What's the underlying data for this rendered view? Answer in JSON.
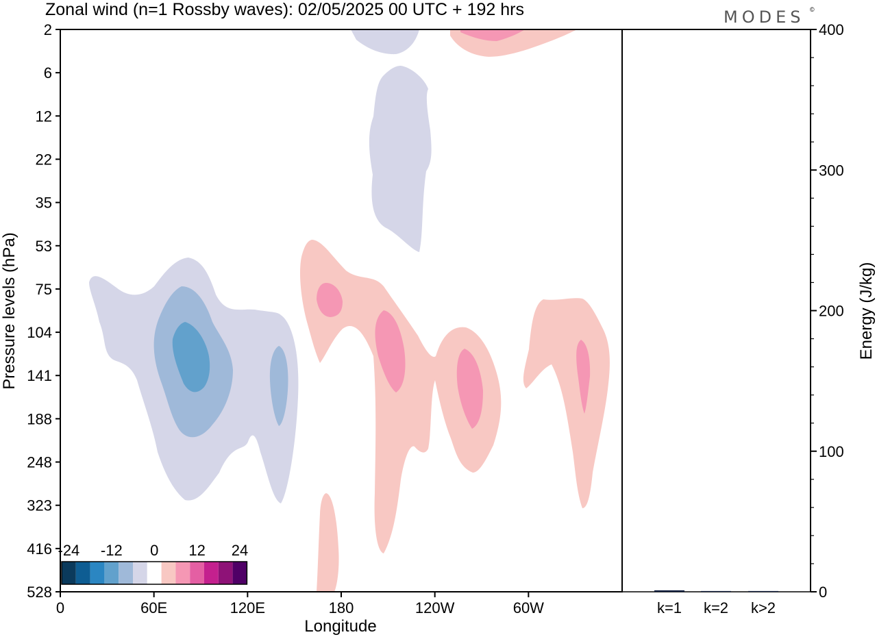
{
  "header": {
    "title": "Zonal wind (n=1 Rossby waves):  02/05/2025  00 UTC  + 192 hrs",
    "logo": "MODES",
    "logo_mark": "©"
  },
  "chart_data": [
    {
      "type": "heatmap",
      "title": "Zonal wind (n=1 Rossby waves):  02/05/2025  00 UTC  + 192 hrs",
      "xlabel": "Longitude",
      "ylabel": "Pressure levels (hPa)",
      "x_ticks": [
        "0",
        "60E",
        "120E",
        "180",
        "120W",
        "60W"
      ],
      "x_tick_values_deg_east": [
        0,
        60,
        120,
        180,
        240,
        300
      ],
      "xlim_deg_east": [
        0,
        360
      ],
      "y_ticks": [
        "2",
        "6",
        "12",
        "22",
        "35",
        "53",
        "75",
        "104",
        "141",
        "188",
        "248",
        "323",
        "416",
        "528"
      ],
      "y_scale": "model levels (index spaced)",
      "ylim": [
        "528",
        "2"
      ],
      "colorbar": {
        "tick_labels": [
          "-24",
          "-12",
          "0",
          "12",
          "24"
        ],
        "tick_values": [
          -24,
          -12,
          0,
          12,
          24
        ],
        "levels": [
          -24,
          -20,
          -16,
          -12,
          -8,
          -4,
          0,
          4,
          8,
          12,
          16,
          20,
          24
        ],
        "colors": [
          "#0b3a5c",
          "#0e5d93",
          "#2b86c2",
          "#62a1cc",
          "#9fb9d9",
          "#d5d6e8",
          "#ffffff",
          "#f8c8c3",
          "#f597b4",
          "#e45fa3",
          "#c4208e",
          "#8e1277",
          "#4f0066"
        ],
        "placement": "bottom-left"
      },
      "regions": [
        {
          "sign": "negative",
          "value": -4,
          "extent_lon_deg_east": [
            18,
            152
          ],
          "extent_level": [
            "53",
            "323"
          ],
          "note": "broad easterly anomaly, eastern hemisphere"
        },
        {
          "sign": "negative",
          "value": -8,
          "extent_lon_deg_east": [
            62,
            112
          ],
          "extent_level": [
            "75",
            "188"
          ]
        },
        {
          "sign": "negative",
          "value": -12,
          "extent_lon_deg_east": [
            71,
            92
          ],
          "extent_level": [
            "104",
            "141"
          ]
        },
        {
          "sign": "negative",
          "value": -8,
          "extent_lon_deg_east": [
            134,
            146
          ],
          "extent_level": [
            "104",
            "188"
          ]
        },
        {
          "sign": "negative",
          "value": -4,
          "extent_lon_deg_east": [
            192,
            233
          ],
          "extent_level": [
            "2",
            "53"
          ],
          "note": "stratospheric column near 180-140W"
        },
        {
          "sign": "positive",
          "value": 4,
          "extent_lon_deg_east": [
            155,
            298
          ],
          "extent_level": [
            "53",
            "416"
          ],
          "note": "westerly anomaly, dateline to 60W"
        },
        {
          "sign": "positive",
          "value": 8,
          "extent_lon_deg_east": [
            164,
            180
          ],
          "extent_level": [
            "75",
            "104"
          ]
        },
        {
          "sign": "positive",
          "value": 8,
          "extent_lon_deg_east": [
            201,
            222
          ],
          "extent_level": [
            "104",
            "141"
          ]
        },
        {
          "sign": "positive",
          "value": 8,
          "extent_lon_deg_east": [
            256,
            275
          ],
          "extent_level": [
            "104",
            "188"
          ]
        },
        {
          "sign": "positive",
          "value": 4,
          "extent_lon_deg_east": [
            296,
            349
          ],
          "extent_level": [
            "75",
            "323"
          ]
        },
        {
          "sign": "positive",
          "value": 8,
          "extent_lon_deg_east": [
            334,
            344
          ],
          "extent_level": [
            "104",
            "188"
          ]
        },
        {
          "sign": "positive",
          "value": 4,
          "extent_lon_deg_east": [
            166,
            180
          ],
          "extent_level": [
            "323",
            "528"
          ]
        },
        {
          "sign": "positive",
          "value": 4,
          "extent_lon_deg_east": [
            251,
            334
          ],
          "extent_level": [
            "2",
            "6"
          ]
        },
        {
          "sign": "positive",
          "value": 8,
          "extent_lon_deg_east": [
            266,
            300
          ],
          "extent_level": [
            "2",
            "6"
          ]
        }
      ]
    },
    {
      "type": "bar",
      "categories": [
        "k=1",
        "k=2",
        "k>2"
      ],
      "values": [
        0.8,
        0.1,
        0.2
      ],
      "ylabel": "Energy (J/kg)",
      "ylim": [
        0,
        400
      ],
      "y_ticks": [
        "0",
        "100",
        "200",
        "300",
        "400"
      ],
      "y_tick_values": [
        0,
        100,
        200,
        300,
        400
      ],
      "axis_side": "right"
    }
  ]
}
